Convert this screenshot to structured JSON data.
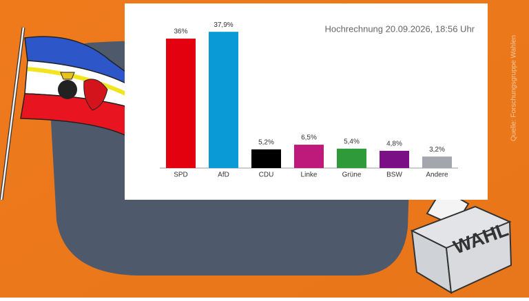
{
  "chart_data": {
    "type": "bar",
    "subtitle": "Hochrechnung 20.09.2026, 18:56 Uhr",
    "source": "Quelle: Forschungsgruppe Wahlen",
    "categories": [
      "SPD",
      "AfD",
      "CDU",
      "Linke",
      "Grüne",
      "BSW",
      "Andere"
    ],
    "values": [
      36,
      37.9,
      5.2,
      6.5,
      5.4,
      4.8,
      3.2
    ],
    "value_labels": [
      "36%",
      "37,9%",
      "5,2%",
      "6,5%",
      "5,4%",
      "4,8%",
      "3,2%"
    ],
    "colors": [
      "#e3000f",
      "#0a9bd6",
      "#000000",
      "#be1a7c",
      "#2f9a3a",
      "#7a0f86",
      "#a3a7ad"
    ]
  },
  "illustration": {
    "ballot_box_text": "WAHL"
  }
}
